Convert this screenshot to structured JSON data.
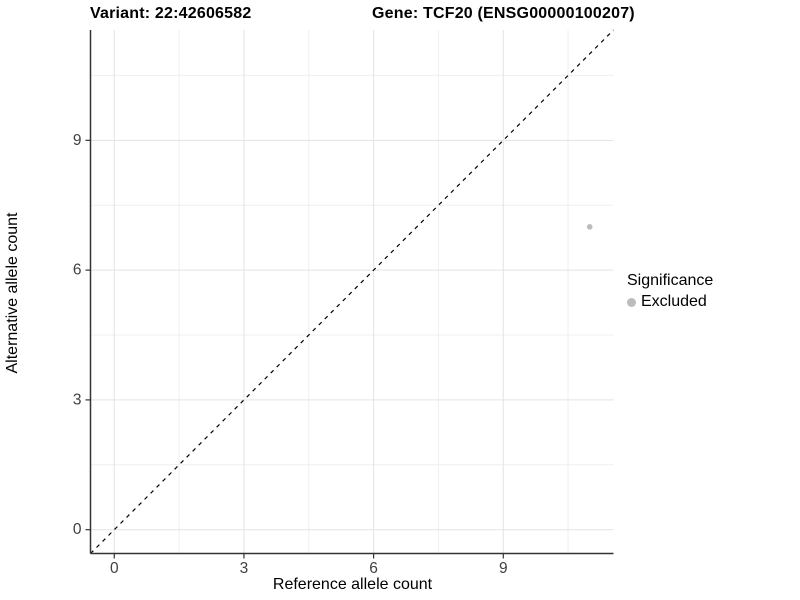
{
  "titles": {
    "variant_label": "Variant: 22:42606582",
    "gene_label": "Gene: TCF20 (ENSG00000100207)"
  },
  "chart_data": {
    "type": "scatter",
    "title": "Variant: 22:42606582  /  Gene: TCF20 (ENSG00000100207)",
    "xlabel": "Reference allele count",
    "ylabel": "Alternative allele count",
    "xlim": [
      -0.55,
      11.55
    ],
    "ylim": [
      -0.55,
      11.55
    ],
    "x_ticks": [
      0,
      3,
      6,
      9
    ],
    "y_ticks": [
      0,
      3,
      6,
      9
    ],
    "x_minor": [
      1.5,
      4.5,
      7.5,
      10.5
    ],
    "y_minor": [
      1.5,
      4.5,
      7.5,
      10.5
    ],
    "grid": true,
    "legend_position": "right",
    "identity_line": {
      "style": "dashed",
      "from": [
        -0.55,
        -0.55
      ],
      "to": [
        11.55,
        11.55
      ]
    },
    "series": [
      {
        "name": "Excluded",
        "points": [
          {
            "x": 11,
            "y": 7
          }
        ]
      }
    ]
  },
  "legend": {
    "title": "Significance",
    "items": [
      {
        "label": "Excluded",
        "color": "#bcbcbc"
      }
    ]
  },
  "colors": {
    "point": "#bcbcbc",
    "grid_major": "#e3e3e3",
    "grid_minor": "#efefef",
    "axis_line": "#333333",
    "tick_text": "#404040",
    "dashed_line": "#000000"
  }
}
